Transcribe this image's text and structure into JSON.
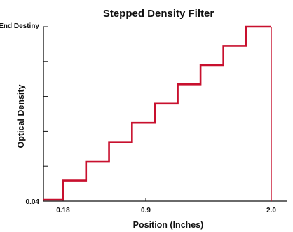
{
  "chart_data": {
    "type": "line",
    "title": "Stepped Density Filter",
    "xlabel": "Position (Inches)",
    "ylabel": "Optical Density",
    "x_tick_labels": [
      "0.18",
      "0.9",
      "2.0"
    ],
    "y_tick_labels": [
      "0.04",
      "End Destiny"
    ],
    "grid": false,
    "series": [
      {
        "color": "#c8102e",
        "steps": [
          {
            "x_start": 0.0,
            "x_end": 0.18,
            "level": 0
          },
          {
            "x_start": 0.18,
            "x_end": 0.38,
            "level": 1
          },
          {
            "x_start": 0.38,
            "x_end": 0.58,
            "level": 2
          },
          {
            "x_start": 0.58,
            "x_end": 0.78,
            "level": 3
          },
          {
            "x_start": 0.78,
            "x_end": 0.98,
            "level": 4
          },
          {
            "x_start": 0.98,
            "x_end": 1.18,
            "level": 5
          },
          {
            "x_start": 1.18,
            "x_end": 1.38,
            "level": 6
          },
          {
            "x_start": 1.38,
            "x_end": 1.58,
            "level": 7
          },
          {
            "x_start": 1.58,
            "x_end": 1.78,
            "level": 8
          },
          {
            "x_start": 1.78,
            "x_end": 2.0,
            "level": 9
          }
        ]
      }
    ],
    "levels": 9
  }
}
